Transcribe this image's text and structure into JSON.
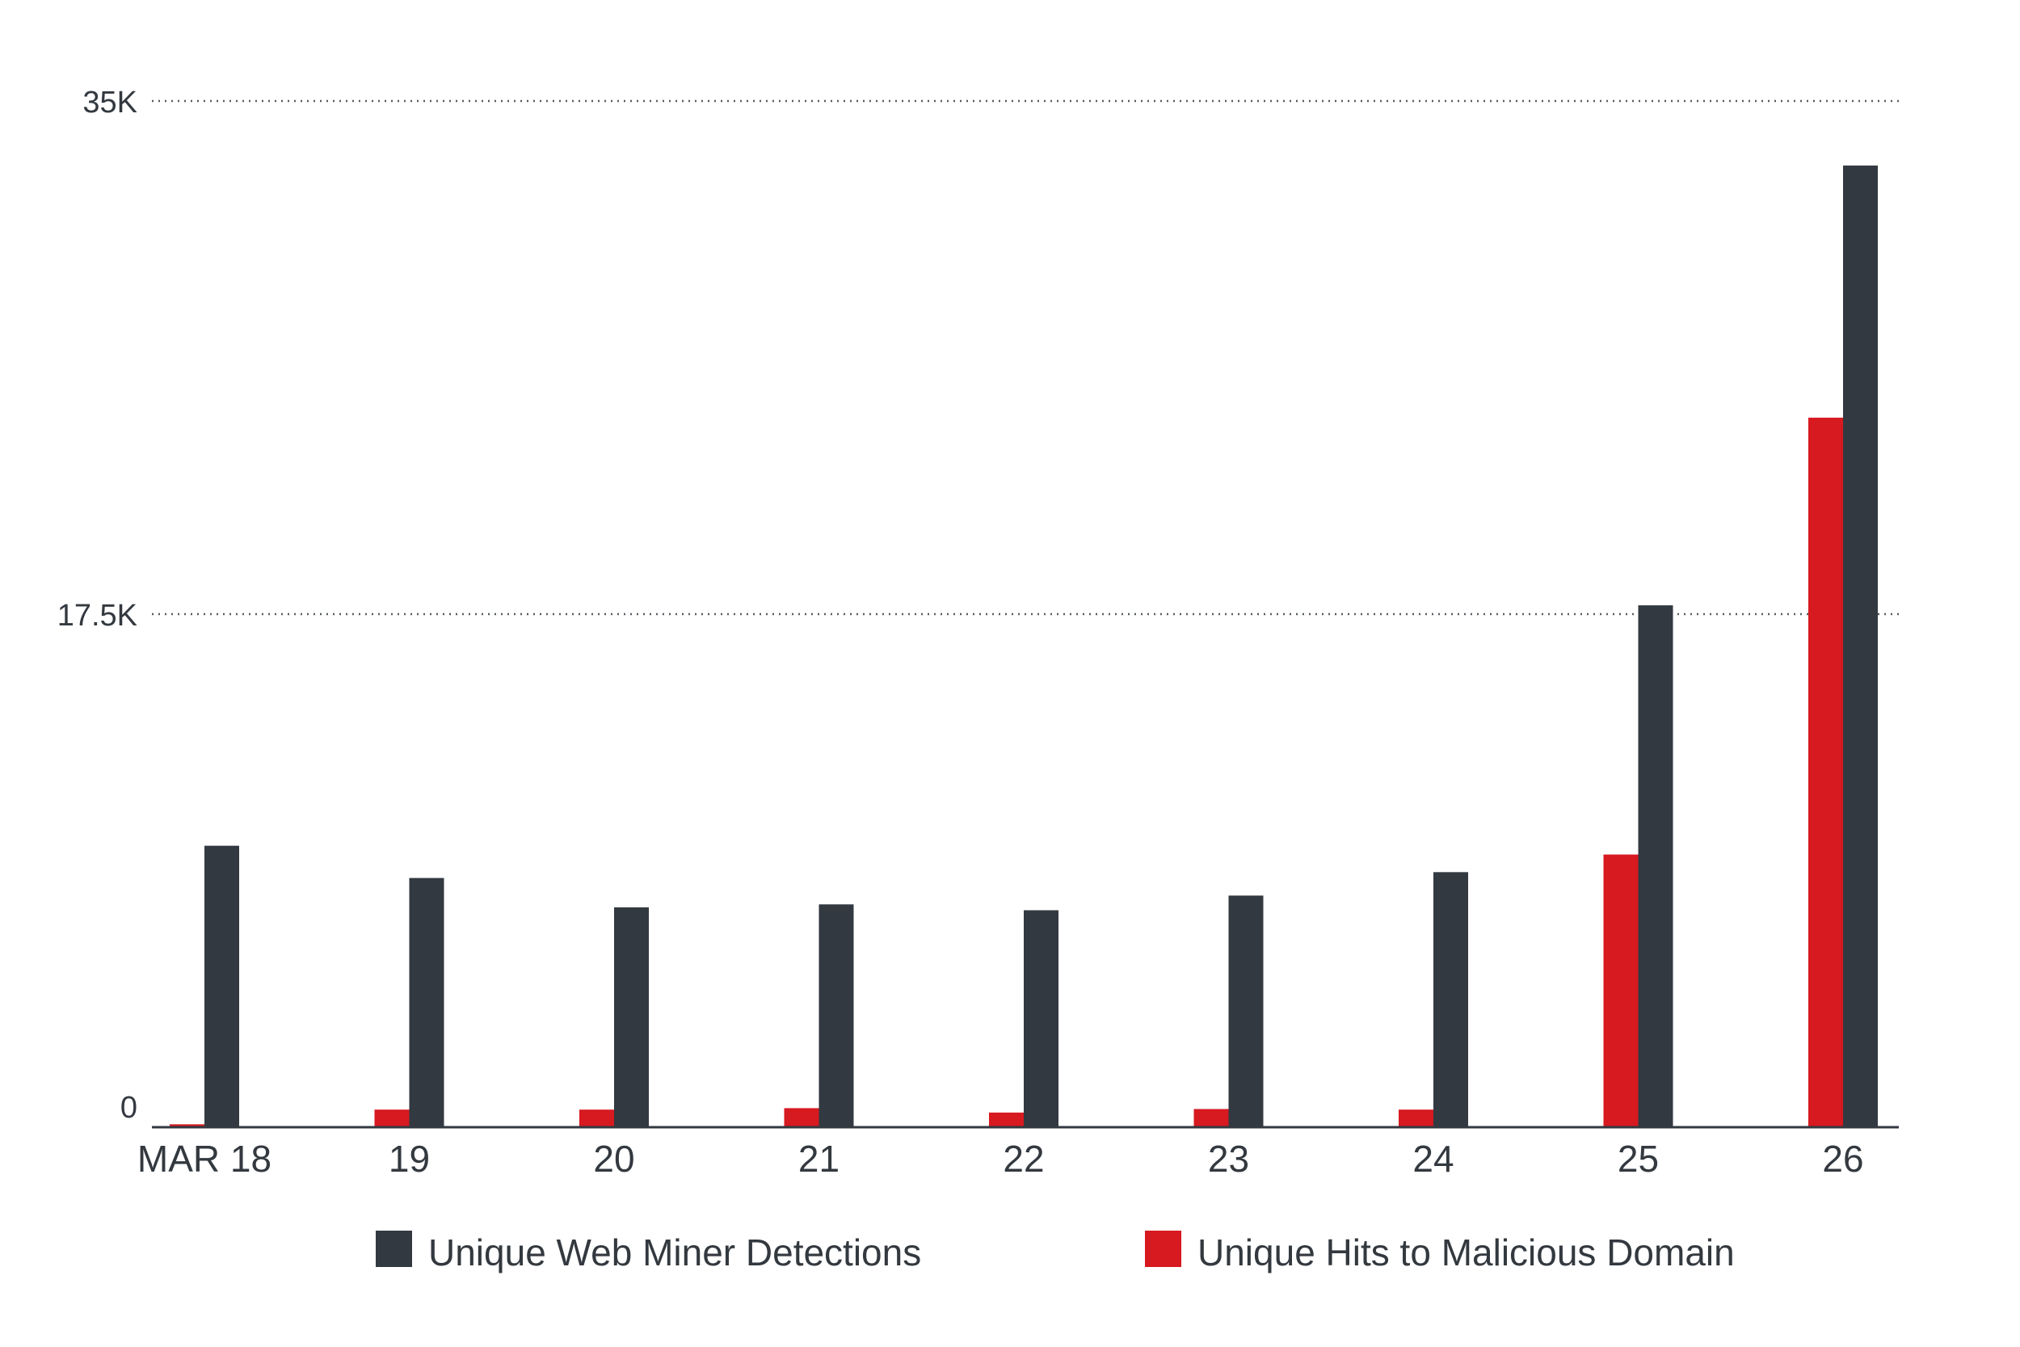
{
  "chart_data": {
    "type": "bar",
    "categories": [
      "MAR 18",
      "19",
      "20",
      "21",
      "22",
      "23",
      "24",
      "25",
      "26"
    ],
    "series": [
      {
        "name": "Unique Hits to Malicious Domain",
        "color": "#d71920",
        "values": [
          100,
          600,
          600,
          650,
          500,
          620,
          600,
          9300,
          24200
        ]
      },
      {
        "name": "Unique Web Miner Detections",
        "color": "#333940",
        "values": [
          9600,
          8500,
          7500,
          7600,
          7400,
          7900,
          8700,
          17800,
          32800
        ]
      }
    ],
    "yaxis": {
      "min": 0,
      "max": 35000,
      "ticks": [
        0,
        17500,
        35000
      ],
      "tick_labels": [
        "0",
        "17.5K",
        "35K"
      ]
    },
    "grid": true,
    "legend_position": "bottom",
    "legend_order": [
      "Unique Web Miner Detections",
      "Unique Hits to Malicious Domain"
    ],
    "axis_color": "#333940"
  }
}
